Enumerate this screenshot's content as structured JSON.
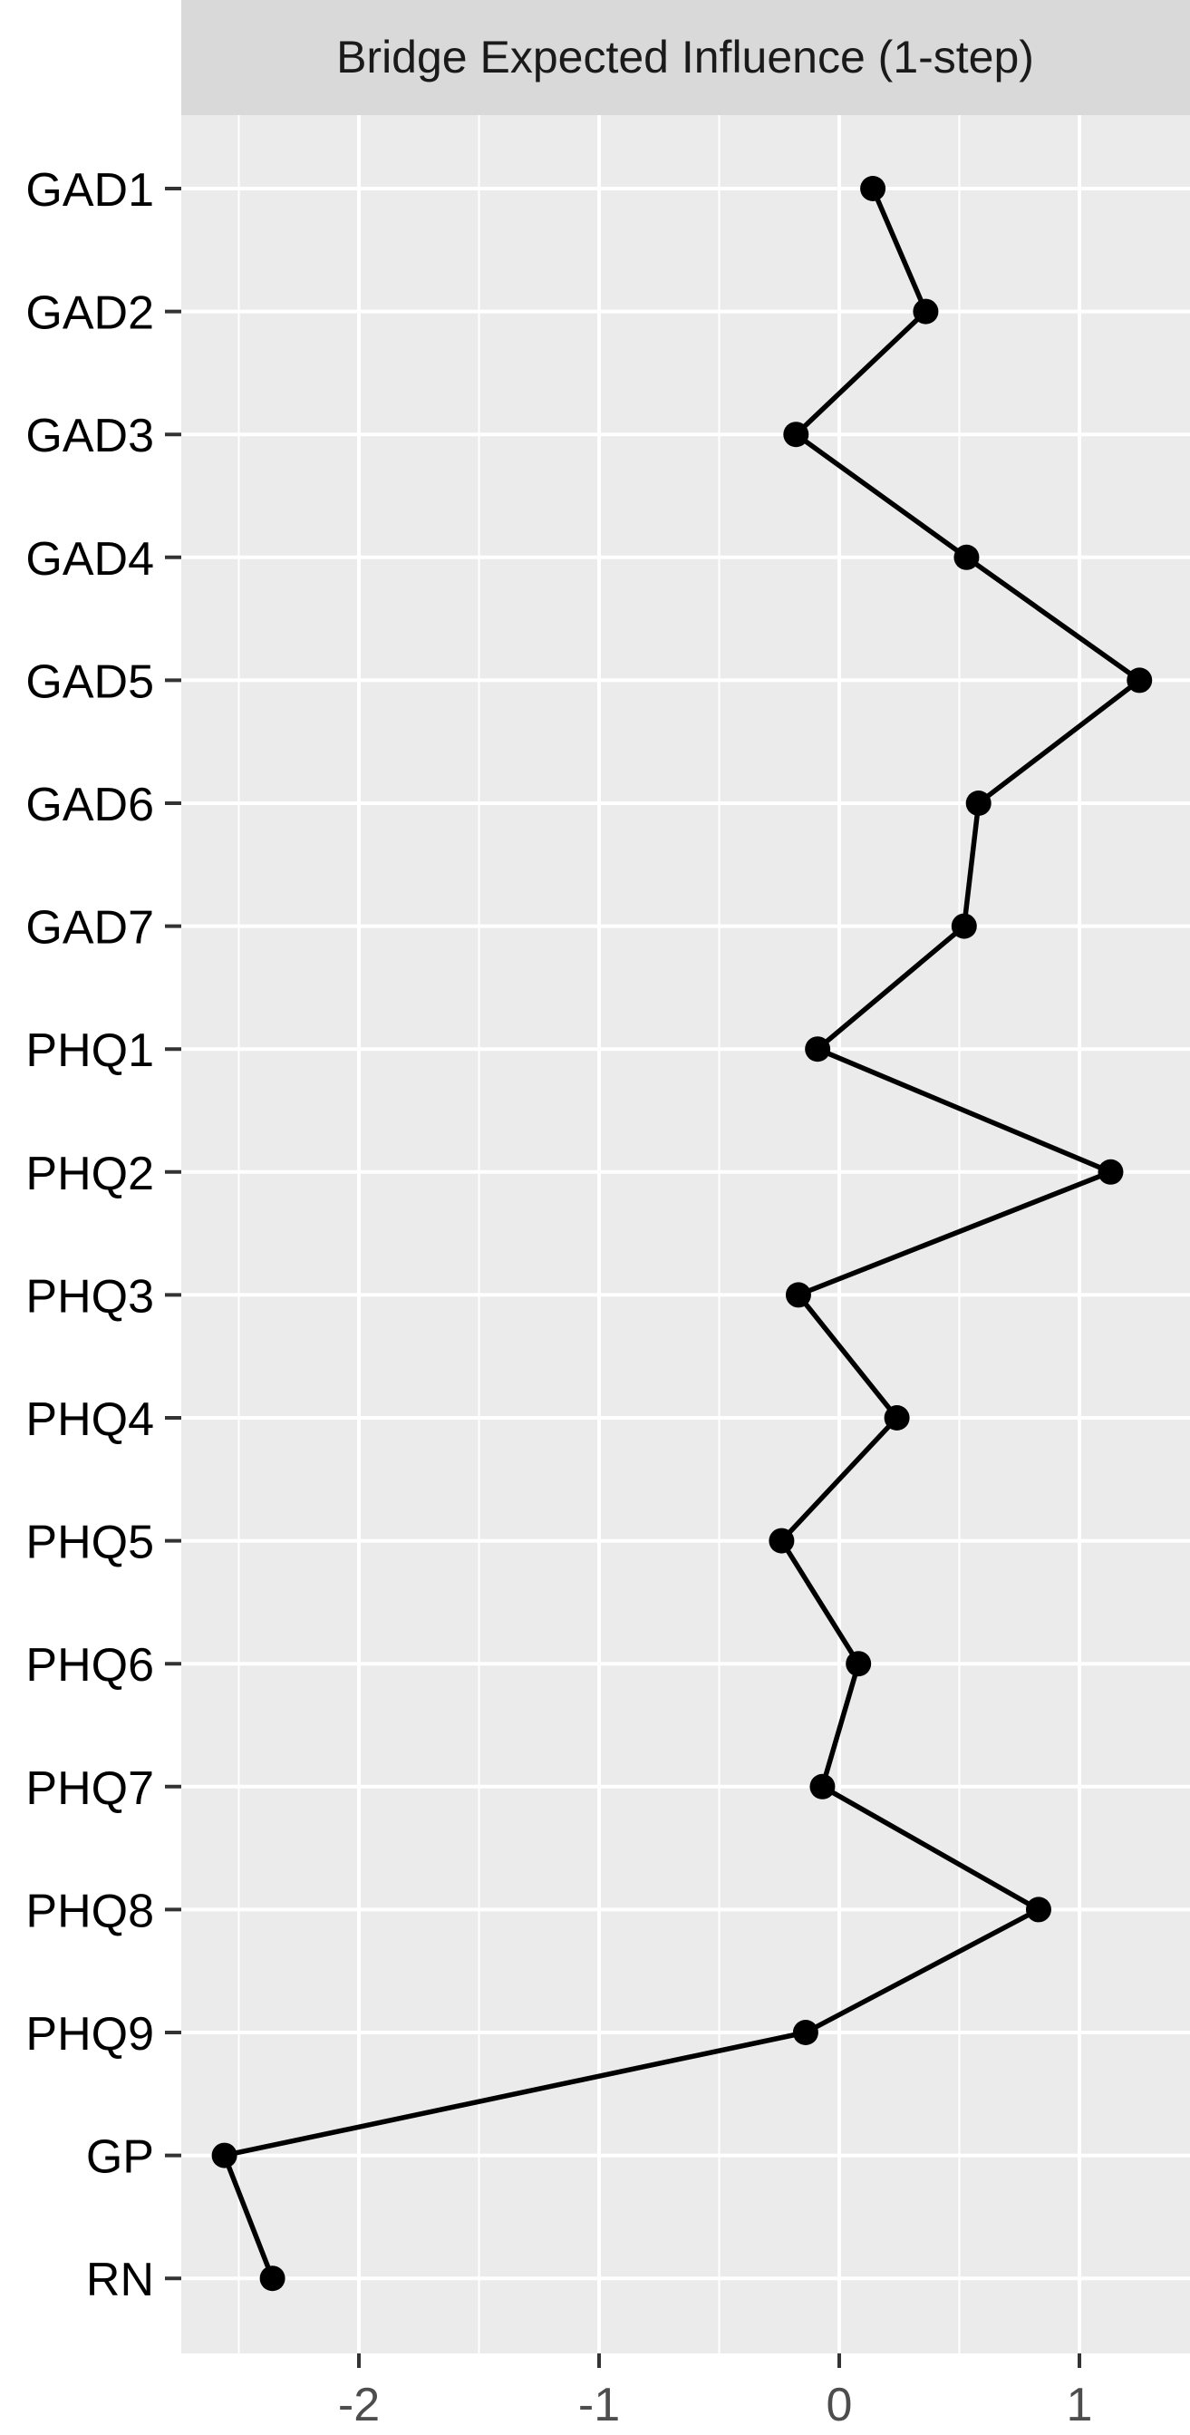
{
  "chart_data": {
    "type": "line",
    "facet_title": "Bridge Expected Influence (1-step)",
    "categories": [
      "GAD1",
      "GAD2",
      "GAD3",
      "GAD4",
      "GAD5",
      "GAD6",
      "GAD7",
      "PHQ1",
      "PHQ2",
      "PHQ3",
      "PHQ4",
      "PHQ5",
      "PHQ6",
      "PHQ7",
      "PHQ8",
      "PHQ9",
      "GP",
      "RN"
    ],
    "values": [
      0.14,
      0.36,
      -0.18,
      0.53,
      1.25,
      0.58,
      0.52,
      -0.09,
      1.13,
      -0.17,
      0.24,
      -0.24,
      0.08,
      -0.07,
      0.83,
      -0.14,
      -2.56,
      -2.36
    ],
    "x_ticks": [
      -2,
      -1,
      0,
      1
    ],
    "x_tick_labels": [
      "-2",
      "-1",
      "0",
      "1"
    ],
    "xlim": [
      -2.75,
      1.45
    ],
    "xlabel": "",
    "ylabel": "",
    "grid": true,
    "panel_background": "#ebebeb",
    "strip_background": "#d9d9d9",
    "grid_color": "#ffffff",
    "line_color": "#000000",
    "point_color": "#000000"
  }
}
